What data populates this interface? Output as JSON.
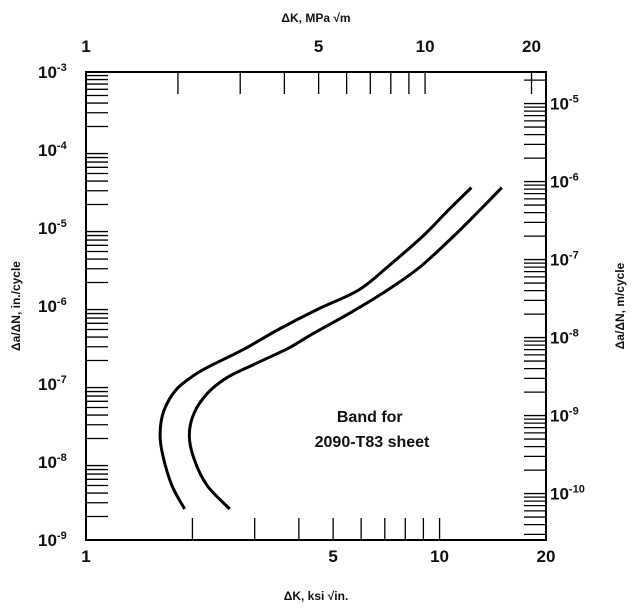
{
  "chart_data": {
    "type": "line",
    "title": "",
    "scale": "log-log",
    "grid": false,
    "x_bottom": {
      "label": "ΔK, ksi √in.",
      "range": [
        1,
        20
      ],
      "tick_labels": [
        {
          "value": 1,
          "text": "1"
        },
        {
          "value": 5,
          "text": "5"
        },
        {
          "value": 10,
          "text": "10"
        },
        {
          "value": 20,
          "text": "20"
        }
      ]
    },
    "x_top": {
      "label": "ΔK, MPa √m",
      "range": [
        1.099,
        21.98
      ],
      "tick_labels": [
        {
          "value": 1,
          "text": "1"
        },
        {
          "value": 5,
          "text": "5"
        },
        {
          "value": 10,
          "text": "10"
        },
        {
          "value": 20,
          "text": "20"
        }
      ]
    },
    "y_left": {
      "label": "Δa/ΔN, in./cycle",
      "range": [
        1e-09,
        0.001
      ],
      "tick_labels": [
        {
          "value": 1e-09,
          "base": "10",
          "exp": "-9"
        },
        {
          "value": 1e-08,
          "base": "10",
          "exp": "-8"
        },
        {
          "value": 1e-07,
          "base": "10",
          "exp": "-7"
        },
        {
          "value": 1e-06,
          "base": "10",
          "exp": "-6"
        },
        {
          "value": 1e-05,
          "base": "10",
          "exp": "-5"
        },
        {
          "value": 0.0001,
          "base": "10",
          "exp": "-4"
        },
        {
          "value": 0.001,
          "base": "10",
          "exp": "-3"
        }
      ]
    },
    "y_right": {
      "label": "Δa/ΔN, m/cycle",
      "range": [
        2.54e-11,
        2.54e-05
      ],
      "tick_labels": [
        {
          "value": 1e-10,
          "base": "10",
          "exp": "-10"
        },
        {
          "value": 1e-09,
          "base": "10",
          "exp": "-9"
        },
        {
          "value": 1e-08,
          "base": "10",
          "exp": "-8"
        },
        {
          "value": 1e-07,
          "base": "10",
          "exp": "-7"
        },
        {
          "value": 1e-06,
          "base": "10",
          "exp": "-6"
        },
        {
          "value": 1e-05,
          "base": "10",
          "exp": "-5"
        }
      ]
    },
    "series": [
      {
        "points": [
          [
            1.9,
            2.5e-09
          ],
          [
            1.75,
            5e-09
          ],
          [
            1.65,
            1.2e-08
          ],
          [
            1.62,
            2.3e-08
          ],
          [
            1.66,
            4.5e-08
          ],
          [
            1.8,
            8.5e-08
          ],
          [
            2.05,
            1.35e-07
          ],
          [
            2.3,
            1.8e-07
          ],
          [
            2.8,
            2.8e-07
          ],
          [
            3.5,
            5e-07
          ],
          [
            4.5,
            9e-07
          ],
          [
            5.9,
            1.6e-06
          ],
          [
            7.2,
            3.3e-06
          ],
          [
            9.0,
            8e-06
          ],
          [
            10.6,
            1.7e-05
          ],
          [
            12.3,
            3.3e-05
          ]
        ]
      },
      {
        "points": [
          [
            2.55,
            2.5e-09
          ],
          [
            2.2,
            5e-09
          ],
          [
            2.02,
            1.1e-08
          ],
          [
            1.96,
            2.2e-08
          ],
          [
            2.02,
            4.2e-08
          ],
          [
            2.2,
            7.5e-08
          ],
          [
            2.5,
            1.2e-07
          ],
          [
            3.0,
            1.8e-07
          ],
          [
            3.75,
            2.9e-07
          ],
          [
            4.3,
            4.2e-07
          ],
          [
            5.6,
            8.2e-07
          ],
          [
            7.2,
            1.65e-06
          ],
          [
            8.9,
            3.3e-06
          ],
          [
            11.0,
            8e-06
          ],
          [
            13.0,
            1.7e-05
          ],
          [
            15.0,
            3.3e-05
          ]
        ]
      }
    ],
    "annotations": [
      {
        "lines": [
          "Band for",
          "2090-T83 sheet"
        ],
        "x": 6.3,
        "y": 4e-08
      }
    ]
  }
}
